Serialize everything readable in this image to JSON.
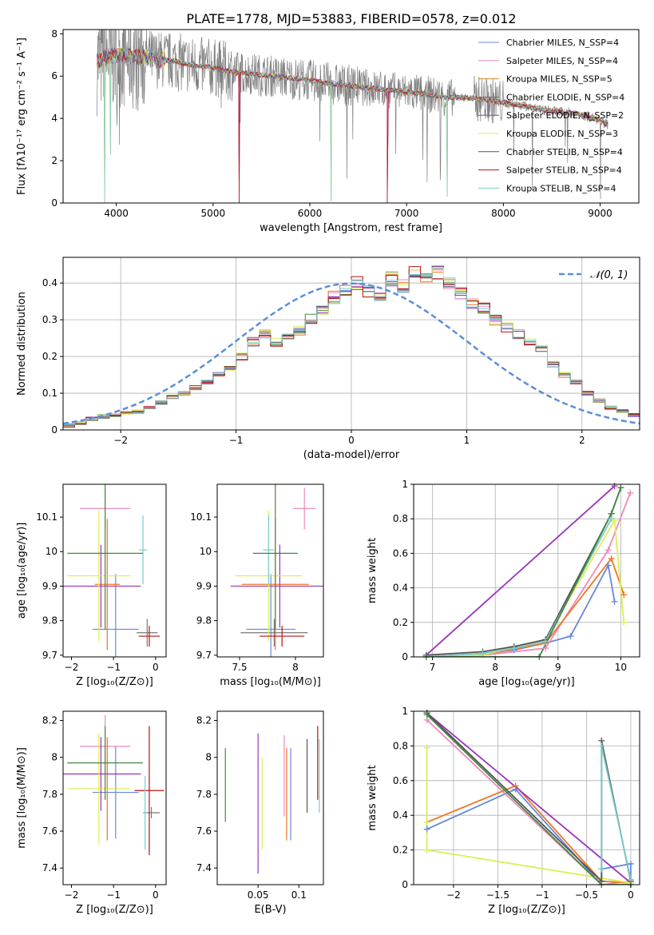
{
  "figure": {
    "title": "PLATE=1778, MJD=53883, FIBERID=0578, z=0.012"
  },
  "colors": {
    "series": [
      "#6688dd",
      "#ee88bb",
      "#ee7722",
      "#777777",
      "#9933bb",
      "#ddee55",
      "#555555",
      "#bb1111",
      "#77cccc",
      "#448844"
    ],
    "data_spectrum": "#808080",
    "gaussian": "#5b8fd9"
  },
  "chart_data": [
    {
      "id": "spectrum",
      "type": "line",
      "title": "PLATE=1778, MJD=53883, FIBERID=0578, z=0.012",
      "xlabel": "wavelength [Angstrom, rest frame]",
      "ylabel": "Flux [fλ10⁻¹⁷ erg cm⁻² s⁻¹ A⁻¹]",
      "xlim": [
        3450,
        9400
      ],
      "ylim": [
        0,
        8.2
      ],
      "xticks": [
        4000,
        5000,
        6000,
        7000,
        8000,
        9000
      ],
      "yticks": [
        0,
        2,
        4,
        6,
        8
      ],
      "grid": false,
      "legend_position": "top-right",
      "legend": [
        "Chabrier MILES, N_SSP=4",
        "Salpeter MILES, N_SSP=4",
        "Kroupa MILES, N_SSP=5",
        "Chabrier ELODIE, N_SSP=4",
        "Salpeter ELODIE, N_SSP=2",
        "Kroupa ELODIE, N_SSP=3",
        "Chabrier STELIB, N_SSP=4",
        "Salpeter STELIB, N_SSP=4",
        "Kroupa STELIB, N_SSP=4"
      ],
      "legend_colors": [
        "#6688dd",
        "#ee88bb",
        "#cc8822",
        "#777777",
        "#9933bb",
        "#ddee55",
        "#555555",
        "#bb1111",
        "#77cccc"
      ],
      "model_continuum": {
        "x": [
          3800,
          3900,
          4000,
          4100,
          4200,
          4300,
          4400,
          4500,
          4600,
          4700,
          4800,
          4900,
          5000,
          5200,
          5400,
          5600,
          5800,
          6000,
          6200,
          6400,
          6600,
          6800,
          7000,
          7200,
          7400,
          7600,
          7800,
          8000,
          8200,
          8400,
          8600,
          8800,
          9000,
          9080
        ],
        "y": [
          6.7,
          6.9,
          7.0,
          7.0,
          6.9,
          6.9,
          6.8,
          6.75,
          6.7,
          6.6,
          6.5,
          6.45,
          6.4,
          6.2,
          6.1,
          6.0,
          5.9,
          5.8,
          5.65,
          5.55,
          5.45,
          5.35,
          5.25,
          5.15,
          5.0,
          4.98,
          4.9,
          4.75,
          4.6,
          4.4,
          4.3,
          4.2,
          3.9,
          3.7
        ]
      },
      "model_dips": [
        {
          "x": 3880,
          "y": 0.0
        },
        {
          "x": 3940,
          "y": 2.3
        },
        {
          "x": 5270,
          "y": 0.0
        },
        {
          "x": 6220,
          "y": 0.1
        },
        {
          "x": 6800,
          "y": 0.0
        },
        {
          "x": 7420,
          "y": 0.3
        }
      ]
    },
    {
      "id": "residuals",
      "type": "line",
      "xlabel": "(data-model)/error",
      "ylabel": "Normed distribution",
      "xlim": [
        -2.5,
        2.5
      ],
      "ylim": [
        0,
        0.47
      ],
      "xticks": [
        -2,
        -1,
        0,
        1,
        2
      ],
      "yticks": [
        0.0,
        0.1,
        0.2,
        0.3,
        0.4
      ],
      "grid": true,
      "legend_position": "top-right",
      "legend": [
        "𝒩(0, 1)"
      ],
      "bin_width": 0.1,
      "bin_start": -2.5,
      "hist_values": [
        0.012,
        0.02,
        0.03,
        0.037,
        0.04,
        0.045,
        0.05,
        0.06,
        0.075,
        0.09,
        0.1,
        0.115,
        0.13,
        0.15,
        0.17,
        0.2,
        0.24,
        0.26,
        0.24,
        0.25,
        0.27,
        0.3,
        0.33,
        0.36,
        0.38,
        0.4,
        0.38,
        0.37,
        0.41,
        0.39,
        0.43,
        0.42,
        0.43,
        0.4,
        0.37,
        0.34,
        0.33,
        0.3,
        0.28,
        0.26,
        0.24,
        0.22,
        0.18,
        0.15,
        0.13,
        0.1,
        0.08,
        0.06,
        0.05,
        0.04
      ],
      "gaussian": {
        "mu": 0,
        "sigma": 1,
        "style": "dashed"
      }
    },
    {
      "id": "age-vs-Z",
      "type": "scatter",
      "xlabel": "Z [log₁₀(Z/Z⊙)]",
      "ylabel": "age  [log₁₀(age/yr)]",
      "xlim": [
        -2.2,
        0.25
      ],
      "ylim": [
        9.695,
        10.195
      ],
      "xticks": [
        -2,
        -1,
        0
      ],
      "yticks": [
        9.7,
        9.8,
        9.9,
        10.0,
        10.1
      ],
      "grid": false,
      "points": [
        {
          "series": 0,
          "x": -0.95,
          "y": 9.775,
          "xerr": 0.55,
          "yerr": 0.16
        },
        {
          "series": 1,
          "x": -1.2,
          "y": 10.125,
          "xerr": 0.6,
          "yerr": 0.06
        },
        {
          "series": 2,
          "x": -1.15,
          "y": 9.905,
          "xerr": 0.3,
          "yerr": 0.19
        },
        {
          "series": 3,
          "x": -0.2,
          "y": 9.765,
          "xerr": 0.25,
          "yerr": 0.04
        },
        {
          "series": 4,
          "x": -1.3,
          "y": 9.9,
          "xerr": 0.95,
          "yerr": 0.12
        },
        {
          "series": 5,
          "x": -1.35,
          "y": 9.93,
          "xerr": 0.75,
          "yerr": 0.19
        },
        {
          "series": 7,
          "x": -0.15,
          "y": 9.755,
          "xerr": 0.25,
          "yerr": 0.03
        },
        {
          "series": 8,
          "x": -0.3,
          "y": 10.005,
          "xerr": 0.1,
          "yerr": 0.1
        },
        {
          "series": 9,
          "x": -1.2,
          "y": 9.995,
          "xerr": 0.9,
          "yerr": 0.22
        }
      ]
    },
    {
      "id": "age-vs-mass",
      "type": "scatter",
      "xlabel": "mass [log₁₀(M/M⊙)]",
      "ylabel": "",
      "xlim": [
        7.3,
        8.25
      ],
      "ylim": [
        9.695,
        10.195
      ],
      "xticks": [
        7.5,
        8.0
      ],
      "yticks": [
        9.7,
        9.8,
        9.9,
        10.0,
        10.1
      ],
      "grid": false,
      "points": [
        {
          "series": 0,
          "x": 7.78,
          "y": 9.775,
          "xerr": 0.22,
          "yerr": 0.16
        },
        {
          "series": 1,
          "x": 8.08,
          "y": 10.125,
          "xerr": 0.1,
          "yerr": 0.06
        },
        {
          "series": 2,
          "x": 7.82,
          "y": 9.905,
          "xerr": 0.3,
          "yerr": 0.19
        },
        {
          "series": 3,
          "x": 7.81,
          "y": 9.765,
          "xerr": 0.3,
          "yerr": 0.04
        },
        {
          "series": 4,
          "x": 7.86,
          "y": 9.9,
          "xerr": 0.44,
          "yerr": 0.12
        },
        {
          "series": 5,
          "x": 7.76,
          "y": 9.93,
          "xerr": 0.3,
          "yerr": 0.19
        },
        {
          "series": 7,
          "x": 7.88,
          "y": 9.755,
          "xerr": 0.2,
          "yerr": 0.03
        },
        {
          "series": 8,
          "x": 7.76,
          "y": 10.005,
          "xerr": 0.05,
          "yerr": 0.1
        },
        {
          "series": 9,
          "x": 7.82,
          "y": 9.995,
          "xerr": 0.2,
          "yerr": 0.22
        }
      ]
    },
    {
      "id": "massweight-vs-age",
      "type": "line",
      "xlabel": "age  [log₁₀(age/yr)]",
      "ylabel": "mass weight",
      "xlim": [
        6.7,
        10.3
      ],
      "ylim": [
        0,
        1
      ],
      "xticks": [
        7,
        8,
        9,
        10
      ],
      "yticks": [
        0.0,
        0.2,
        0.4,
        0.6,
        0.8,
        1.0
      ],
      "grid": true,
      "series": [
        {
          "color_index": 0,
          "x": [
            6.9,
            7.8,
            8.3,
            8.8,
            9.2,
            9.8,
            9.9
          ],
          "y": [
            0.0,
            0.02,
            0.04,
            0.08,
            0.12,
            0.53,
            0.32
          ]
        },
        {
          "color_index": 1,
          "x": [
            6.9,
            7.8,
            8.8,
            9.8,
            10.15
          ],
          "y": [
            0.0,
            0.01,
            0.05,
            0.62,
            0.95
          ]
        },
        {
          "color_index": 2,
          "x": [
            6.9,
            7.8,
            8.8,
            9.85,
            10.05
          ],
          "y": [
            0.0,
            0.01,
            0.08,
            0.57,
            0.36
          ]
        },
        {
          "color_index": 4,
          "x": [
            6.9,
            9.9
          ],
          "y": [
            0.01,
            0.99
          ]
        },
        {
          "color_index": 5,
          "x": [
            6.9,
            7.8,
            8.8,
            9.9,
            10.05
          ],
          "y": [
            0.0,
            0.01,
            0.1,
            0.79,
            0.2
          ]
        },
        {
          "color_index": 6,
          "x": [
            6.9,
            7.8,
            8.3,
            8.8,
            9.85,
            10.0
          ],
          "y": [
            0.01,
            0.03,
            0.06,
            0.1,
            0.83,
            0.98
          ]
        },
        {
          "color_index": 8,
          "x": [
            6.9,
            7.8,
            8.3,
            8.8,
            9.85
          ],
          "y": [
            0.0,
            0.02,
            0.05,
            0.09,
            0.8
          ]
        },
        {
          "color_index": 9,
          "x": [
            6.9,
            8.7,
            9.85,
            10.0
          ],
          "y": [
            0.0,
            0.0,
            0.83,
            0.98
          ]
        }
      ]
    },
    {
      "id": "mass-vs-Z",
      "type": "scatter",
      "xlabel": "Z [log₁₀(Z/Z⊙)]",
      "ylabel": "mass [log₁₀(M/M⊙)]",
      "xlim": [
        -2.2,
        0.25
      ],
      "ylim": [
        7.31,
        8.25
      ],
      "xticks": [
        -2,
        -1,
        0
      ],
      "yticks": [
        7.4,
        7.6,
        7.8,
        8.0,
        8.2
      ],
      "grid": false,
      "points": [
        {
          "series": 0,
          "x": -0.95,
          "y": 7.81,
          "xerr": 0.55,
          "yerr": 0.25
        },
        {
          "series": 1,
          "x": -1.2,
          "y": 8.06,
          "xerr": 0.6,
          "yerr": 0.17
        },
        {
          "series": 2,
          "x": -1.15,
          "y": 7.83,
          "xerr": 0.25,
          "yerr": 0.28
        },
        {
          "series": 3,
          "x": -0.1,
          "y": 7.7,
          "xerr": 0.2,
          "yerr": 0.03
        },
        {
          "series": 4,
          "x": -1.3,
          "y": 7.91,
          "xerr": 0.95,
          "yerr": 0.2
        },
        {
          "series": 5,
          "x": -1.35,
          "y": 7.83,
          "xerr": 0.75,
          "yerr": 0.3
        },
        {
          "series": 7,
          "x": -0.15,
          "y": 7.82,
          "xerr": 0.35,
          "yerr": 0.35
        },
        {
          "series": 8,
          "x": -0.25,
          "y": 7.7,
          "xerr": 0.05,
          "yerr": 0.2
        },
        {
          "series": 9,
          "x": -1.2,
          "y": 7.97,
          "xerr": 0.9,
          "yerr": 0.2
        }
      ]
    },
    {
      "id": "mass-vs-EBV",
      "type": "scatter",
      "xlabel": "E(B-V)",
      "ylabel": "",
      "xlim": [
        0.0,
        0.13
      ],
      "ylim": [
        7.31,
        8.25
      ],
      "xticks": [
        0.05,
        0.1
      ],
      "yticks": [
        7.4,
        7.6,
        7.8,
        8.0,
        8.2
      ],
      "grid": false,
      "points": [
        {
          "series": 9,
          "x": 0.01,
          "y": 7.85,
          "xerr": 0,
          "yerr": 0.2
        },
        {
          "series": 4,
          "x": 0.05,
          "y": 7.75,
          "xerr": 0,
          "yerr": 0.38
        },
        {
          "series": 5,
          "x": 0.055,
          "y": 7.75,
          "xerr": 0,
          "yerr": 0.25
        },
        {
          "series": 1,
          "x": 0.082,
          "y": 7.9,
          "xerr": 0,
          "yerr": 0.22
        },
        {
          "series": 2,
          "x": 0.085,
          "y": 7.8,
          "xerr": 0,
          "yerr": 0.25
        },
        {
          "series": 0,
          "x": 0.09,
          "y": 7.8,
          "xerr": 0,
          "yerr": 0.25
        },
        {
          "series": 6,
          "x": 0.11,
          "y": 7.9,
          "xerr": 0,
          "yerr": 0.2
        },
        {
          "series": 7,
          "x": 0.123,
          "y": 7.97,
          "xerr": 0,
          "yerr": 0.2
        },
        {
          "series": 8,
          "x": 0.125,
          "y": 7.9,
          "xerr": 0,
          "yerr": 0.2
        }
      ]
    },
    {
      "id": "massweight-vs-Z",
      "type": "line",
      "xlabel": "Z [log₁₀(Z/Z⊙)]",
      "ylabel": "mass weight",
      "xlim": [
        -2.45,
        0.1
      ],
      "ylim": [
        0,
        1
      ],
      "xticks": [
        -2.0,
        -1.5,
        -1.0,
        -0.5,
        0.0
      ],
      "yticks": [
        0.0,
        0.2,
        0.4,
        0.6,
        0.8,
        1.0
      ],
      "grid": true,
      "series": [
        {
          "color_index": 0,
          "x": [
            -2.3,
            -1.3,
            -0.33,
            -0.33,
            0.0,
            0.0
          ],
          "y": [
            0.32,
            0.55,
            0.0,
            0.09,
            0.12,
            0.03
          ]
        },
        {
          "color_index": 1,
          "x": [
            -2.3,
            -0.33,
            0.0
          ],
          "y": [
            0.95,
            0.0,
            0.02
          ]
        },
        {
          "color_index": 2,
          "x": [
            -2.3,
            -1.3,
            -0.33,
            0.0
          ],
          "y": [
            0.36,
            0.57,
            0.02,
            0.01
          ]
        },
        {
          "color_index": 4,
          "x": [
            -2.3,
            0.0
          ],
          "y": [
            0.99,
            0.01
          ]
        },
        {
          "color_index": 5,
          "x": [
            -2.3,
            -2.3,
            -2.3,
            0.0
          ],
          "y": [
            0.79,
            0.36,
            0.2,
            0.01
          ]
        },
        {
          "color_index": 6,
          "x": [
            -2.3,
            -0.33,
            -0.33,
            0.0
          ],
          "y": [
            0.99,
            0.02,
            0.83,
            0.02
          ]
        },
        {
          "color_index": 8,
          "x": [
            -0.33,
            -0.33,
            0.0
          ],
          "y": [
            0.09,
            0.8,
            0.03
          ]
        },
        {
          "color_index": 9,
          "x": [
            -2.3,
            -0.33,
            0.0
          ],
          "y": [
            0.98,
            0.0,
            0.0
          ]
        }
      ]
    }
  ]
}
